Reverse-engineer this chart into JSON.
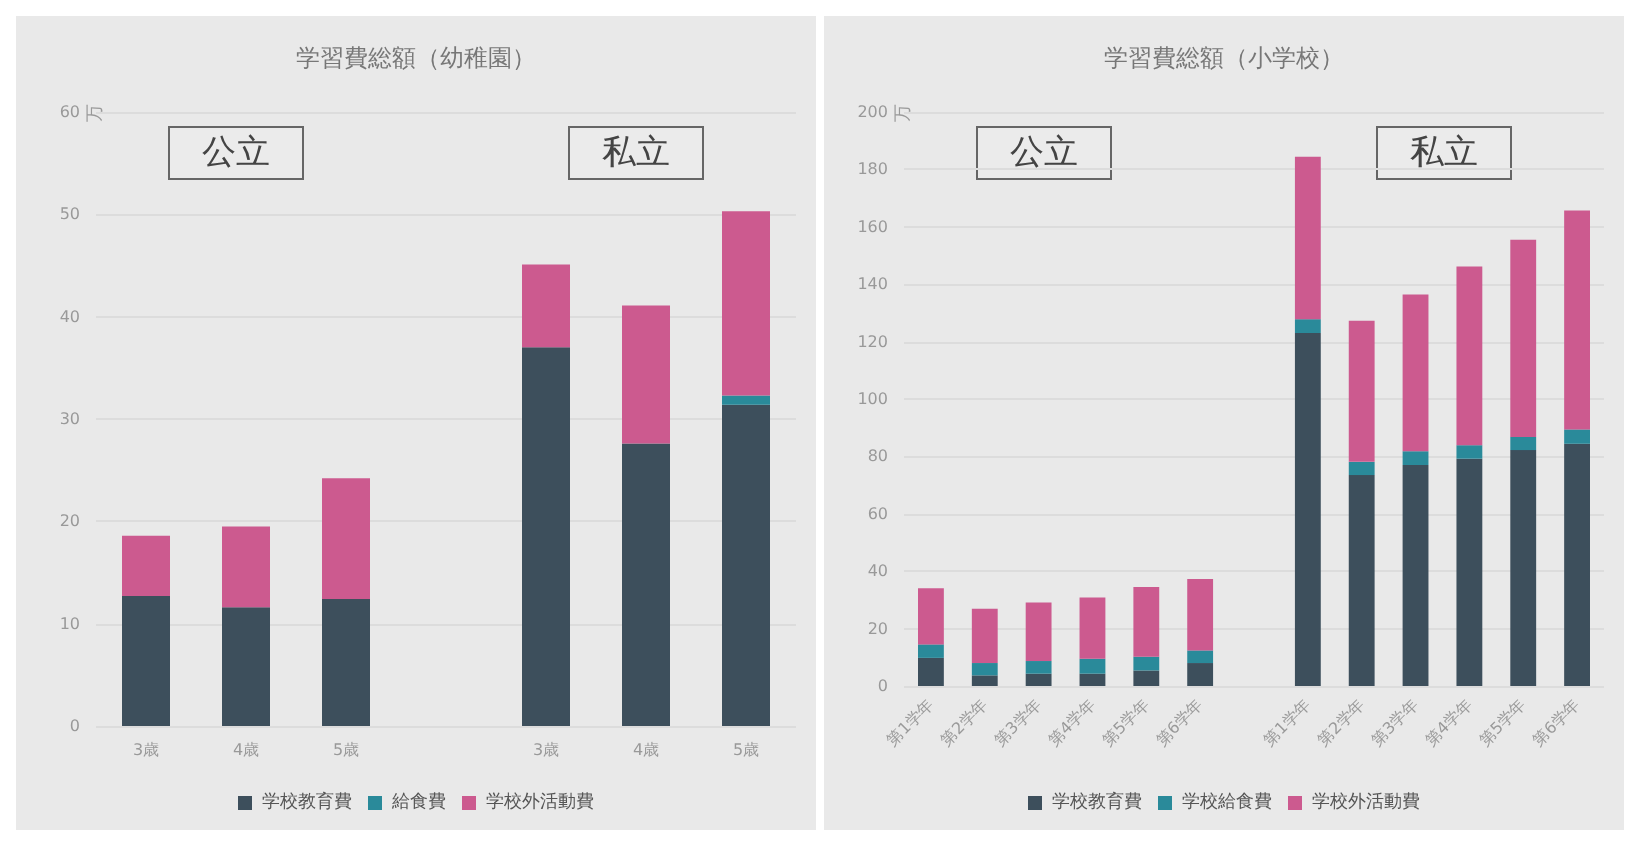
{
  "chart_data": [
    {
      "type": "bar",
      "title": "学習費総額（幼稚園）",
      "ylabel": "万",
      "stacked": true,
      "grid": "y",
      "legend": "bottom",
      "annotations": [
        "公立",
        "私立"
      ],
      "categories": [
        "3歳",
        "4歳",
        "5歳",
        null,
        "3歳",
        "4歳",
        "5歳"
      ],
      "ylim": [
        0,
        60
      ],
      "yticks": [
        0,
        10,
        20,
        30,
        40,
        50,
        60
      ],
      "series": [
        {
          "name": "学校教育費",
          "color": "#3d4f5c",
          "values": [
            12.7,
            11.6,
            12.4,
            null,
            37.0,
            27.6,
            31.4
          ]
        },
        {
          "name": "給食費",
          "color": "#2a8a9a",
          "values": [
            0,
            0,
            0,
            null,
            0,
            0,
            0.9
          ]
        },
        {
          "name": "学校外活動費",
          "color": "#cc5a8f",
          "values": [
            5.9,
            7.9,
            11.8,
            null,
            8.1,
            13.5,
            18.0
          ]
        }
      ]
    },
    {
      "type": "bar",
      "title": "学習費総額（小学校）",
      "ylabel": "万",
      "stacked": true,
      "grid": "y",
      "legend": "bottom",
      "annotations": [
        "公立",
        "私立"
      ],
      "categories": [
        "第1学年",
        "第2学年",
        "第3学年",
        "第4学年",
        "第5学年",
        "第6学年",
        null,
        "第1学年",
        "第2学年",
        "第3学年",
        "第4学年",
        "第5学年",
        "第6学年"
      ],
      "ylim": [
        0,
        200
      ],
      "yticks": [
        0,
        20,
        40,
        60,
        80,
        100,
        120,
        140,
        160,
        180,
        200
      ],
      "series": [
        {
          "name": "学校教育費",
          "color": "#3d4f5c",
          "values": [
            9.8,
            3.7,
            4.3,
            4.3,
            5.4,
            8.0,
            null,
            123.0,
            73.5,
            77.0,
            79.2,
            82.2,
            84.4
          ]
        },
        {
          "name": "学校給食費",
          "color": "#2a8a9a",
          "values": [
            4.7,
            4.3,
            4.4,
            5.2,
            4.8,
            4.4,
            null,
            4.8,
            4.6,
            4.8,
            4.7,
            4.6,
            5.0
          ]
        },
        {
          "name": "学校外活動費",
          "color": "#cc5a8f",
          "values": [
            19.6,
            18.9,
            20.4,
            21.3,
            24.3,
            24.9,
            null,
            56.6,
            49.2,
            54.6,
            62.3,
            68.7,
            76.3
          ]
        }
      ]
    }
  ]
}
